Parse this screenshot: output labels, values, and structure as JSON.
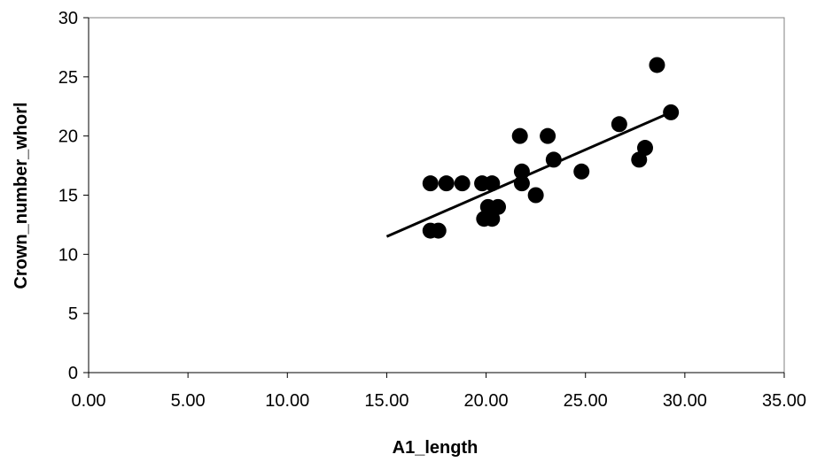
{
  "chart_data": {
    "type": "scatter",
    "xlabel": "A1_length",
    "ylabel": "Crown_number_whorl",
    "xlim": [
      0,
      35
    ],
    "ylim": [
      0,
      30
    ],
    "x_ticks": [
      0,
      5,
      10,
      15,
      20,
      25,
      30,
      35
    ],
    "x_tick_labels": [
      "0.00",
      "5.00",
      "10.00",
      "15.00",
      "20.00",
      "25.00",
      "30.00",
      "35.00"
    ],
    "y_ticks": [
      0,
      5,
      10,
      15,
      20,
      25,
      30
    ],
    "y_tick_labels": [
      "0",
      "5",
      "10",
      "15",
      "20",
      "25",
      "30"
    ],
    "grid": false,
    "legend": "none",
    "marker_color": "#000000",
    "series": [
      {
        "points": [
          {
            "x": 17.2,
            "y": 16
          },
          {
            "x": 17.2,
            "y": 12
          },
          {
            "x": 17.6,
            "y": 12
          },
          {
            "x": 18.0,
            "y": 16
          },
          {
            "x": 18.8,
            "y": 16
          },
          {
            "x": 19.8,
            "y": 16
          },
          {
            "x": 20.3,
            "y": 16
          },
          {
            "x": 19.9,
            "y": 13
          },
          {
            "x": 20.3,
            "y": 13
          },
          {
            "x": 20.1,
            "y": 14
          },
          {
            "x": 20.6,
            "y": 14
          },
          {
            "x": 21.7,
            "y": 20
          },
          {
            "x": 21.8,
            "y": 17
          },
          {
            "x": 21.8,
            "y": 16
          },
          {
            "x": 22.5,
            "y": 15
          },
          {
            "x": 23.1,
            "y": 20
          },
          {
            "x": 23.4,
            "y": 18
          },
          {
            "x": 24.8,
            "y": 17
          },
          {
            "x": 26.7,
            "y": 21
          },
          {
            "x": 27.7,
            "y": 18
          },
          {
            "x": 28.0,
            "y": 19
          },
          {
            "x": 28.6,
            "y": 26
          },
          {
            "x": 29.3,
            "y": 22
          }
        ]
      }
    ],
    "trendline": {
      "x_start": 15.0,
      "y_start": 11.5,
      "x_end": 29.3,
      "y_end": 22.0
    }
  }
}
